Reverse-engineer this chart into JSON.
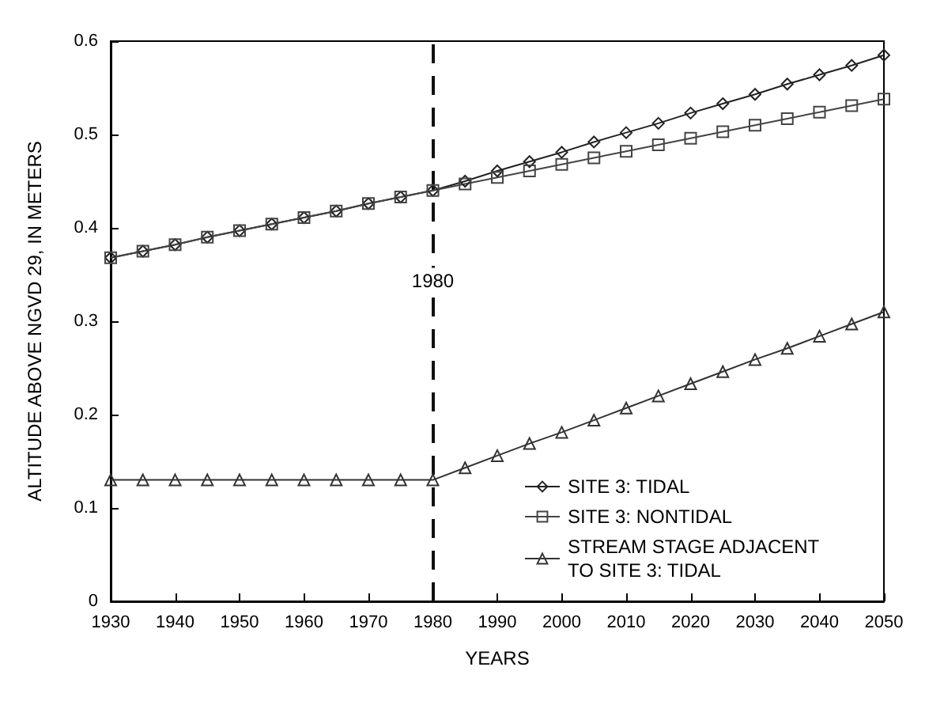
{
  "chart_data": {
    "type": "line",
    "xlabel": "YEARS",
    "ylabel": "ALTITUDE ABOVE NGVD 29, IN METERS",
    "x": [
      1930,
      1935,
      1940,
      1945,
      1950,
      1955,
      1960,
      1965,
      1970,
      1975,
      1980,
      1985,
      1990,
      1995,
      2000,
      2005,
      2010,
      2015,
      2020,
      2025,
      2030,
      2035,
      2040,
      2045,
      2050
    ],
    "series": [
      {
        "name": "SITE 3: TIDAL",
        "color": "#222222",
        "marker": "diamond",
        "values": [
          0.368,
          0.375,
          0.382,
          0.39,
          0.397,
          0.404,
          0.411,
          0.418,
          0.426,
          0.433,
          0.44,
          0.45,
          0.461,
          0.471,
          0.481,
          0.492,
          0.502,
          0.512,
          0.523,
          0.533,
          0.543,
          0.554,
          0.564,
          0.574,
          0.585
        ]
      },
      {
        "name": "SITE 3: NONTIDAL",
        "color": "#444444",
        "marker": "square",
        "values": [
          0.368,
          0.375,
          0.382,
          0.39,
          0.397,
          0.404,
          0.411,
          0.418,
          0.426,
          0.433,
          0.44,
          0.447,
          0.454,
          0.461,
          0.468,
          0.475,
          0.482,
          0.489,
          0.496,
          0.503,
          0.51,
          0.517,
          0.524,
          0.531,
          0.538
        ]
      },
      {
        "name": "STREAM STAGE ADJACENT TO SITE 3: TIDAL",
        "color": "#333333",
        "marker": "triangle",
        "values": [
          0.13,
          0.13,
          0.13,
          0.13,
          0.13,
          0.13,
          0.13,
          0.13,
          0.13,
          0.13,
          0.13,
          0.143,
          0.156,
          0.169,
          0.181,
          0.194,
          0.207,
          0.22,
          0.233,
          0.246,
          0.259,
          0.271,
          0.284,
          0.297,
          0.31
        ]
      }
    ],
    "xlim": [
      1930,
      2050
    ],
    "xticks": [
      1930,
      1940,
      1950,
      1960,
      1970,
      1980,
      1990,
      2000,
      2010,
      2020,
      2030,
      2040,
      2050
    ],
    "ylim": [
      0,
      0.6
    ],
    "yticks": [
      0,
      0.1,
      0.2,
      0.3,
      0.4,
      0.5,
      0.6
    ],
    "ref_lines": [
      {
        "axis": "x",
        "value": 1980,
        "label": "1980",
        "line_style": "dashed",
        "color": "#111111"
      }
    ],
    "grid": false,
    "legend": "bottom right",
    "line_style": "solid"
  }
}
